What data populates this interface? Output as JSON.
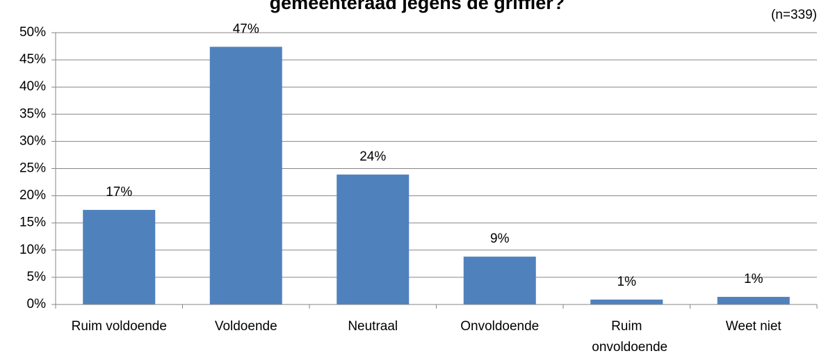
{
  "chart_data": {
    "type": "bar",
    "title": "gemeenteraad jegens de griffier?",
    "subtitle": "(n=339)",
    "categories": [
      "Ruim voldoende",
      "Voldoende",
      "Neutraal",
      "Onvoldoende",
      "Ruim onvoldoende",
      "Weet niet"
    ],
    "values": [
      17.4,
      47.4,
      23.9,
      8.8,
      0.9,
      1.4
    ],
    "value_labels": [
      "17%",
      "47%",
      "24%",
      "9%",
      "1%",
      "1%"
    ],
    "color": "#4f81bd",
    "ylim": [
      0,
      50
    ],
    "yticks": [
      {
        "value": 0,
        "label": "0%"
      },
      {
        "value": 5,
        "label": "5%"
      },
      {
        "value": 10,
        "label": "10%"
      },
      {
        "value": 15,
        "label": "15%"
      },
      {
        "value": 20,
        "label": "20%"
      },
      {
        "value": 25,
        "label": "25%"
      },
      {
        "value": 30,
        "label": "30%"
      },
      {
        "value": 35,
        "label": "35%"
      },
      {
        "value": 40,
        "label": "40%"
      },
      {
        "value": 45,
        "label": "45%"
      },
      {
        "value": 50,
        "label": "50%"
      }
    ],
    "grid": true
  }
}
